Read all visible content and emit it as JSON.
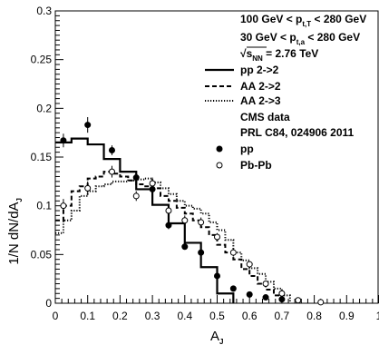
{
  "chart_data": {
    "type": "line",
    "xlabel": "A",
    "xlabel_sub": "J",
    "ylabel": "1/N dN/dA",
    "ylabel_sub": "J",
    "xlim": [
      0,
      1
    ],
    "ylim": [
      0,
      0.3
    ],
    "x_ticks": [
      "0",
      "0.1",
      "0.2",
      "0.3",
      "0.4",
      "0.5",
      "0.6",
      "0.7",
      "0.8",
      "0.9",
      "1"
    ],
    "y_ticks": [
      "0",
      "0.05",
      "0.1",
      "0.15",
      "0.2",
      "0.25",
      "0.3"
    ],
    "annotations": [
      {
        "pre": "100 GeV < p",
        "sub": "t,T",
        "post": " < 280 GeV"
      },
      {
        "pre": "30 GeV < p",
        "sub": "t,a",
        "post": " < 280 GeV"
      },
      {
        "pre": "√s",
        "sub": "NN",
        "post": " = 2.76 TeV"
      }
    ],
    "legend": [
      {
        "label": "pp 2->2",
        "style": "solid"
      },
      {
        "label": "AA 2->2",
        "style": "dashed"
      },
      {
        "label": "AA 2->3",
        "style": "dotted"
      },
      {
        "label": "CMS data",
        "style": "none"
      },
      {
        "label": "PRL C84, 024906 2011",
        "style": "none"
      },
      {
        "label": "pp",
        "style": "filled-circle"
      },
      {
        "label": "Pb-Pb",
        "style": "open-circle"
      }
    ],
    "series": [
      {
        "name": "pp 2->2",
        "kind": "step",
        "style": "solid",
        "edges": [
          0,
          0.05,
          0.1,
          0.15,
          0.2,
          0.25,
          0.3,
          0.35,
          0.4,
          0.45,
          0.5,
          0.55
        ],
        "values": [
          0.165,
          0.169,
          0.163,
          0.148,
          0.135,
          0.117,
          0.101,
          0.082,
          0.062,
          0.037,
          0.01
        ]
      },
      {
        "name": "AA 2->2",
        "kind": "step",
        "style": "dashed",
        "edges": [
          0,
          0.025,
          0.05,
          0.075,
          0.1,
          0.125,
          0.15,
          0.175,
          0.2,
          0.225,
          0.25,
          0.275,
          0.3,
          0.325,
          0.35,
          0.375,
          0.4,
          0.425,
          0.45,
          0.475,
          0.5,
          0.525,
          0.55,
          0.575,
          0.6,
          0.625,
          0.65,
          0.675,
          0.7
        ],
        "values": [
          0.085,
          0.1,
          0.115,
          0.12,
          0.128,
          0.13,
          0.135,
          0.133,
          0.13,
          0.126,
          0.122,
          0.12,
          0.118,
          0.11,
          0.105,
          0.098,
          0.092,
          0.085,
          0.078,
          0.07,
          0.06,
          0.052,
          0.045,
          0.035,
          0.028,
          0.02,
          0.014,
          0.008
        ]
      },
      {
        "name": "AA 2->3",
        "kind": "step",
        "style": "dotted",
        "edges": [
          0,
          0.025,
          0.05,
          0.075,
          0.1,
          0.125,
          0.15,
          0.175,
          0.2,
          0.225,
          0.25,
          0.275,
          0.3,
          0.325,
          0.35,
          0.375,
          0.4,
          0.425,
          0.45,
          0.475,
          0.5,
          0.525,
          0.55,
          0.575,
          0.6,
          0.625,
          0.65,
          0.675,
          0.7,
          0.725
        ],
        "values": [
          0.072,
          0.085,
          0.095,
          0.11,
          0.115,
          0.12,
          0.122,
          0.125,
          0.125,
          0.126,
          0.127,
          0.128,
          0.124,
          0.118,
          0.112,
          0.105,
          0.1,
          0.097,
          0.092,
          0.083,
          0.075,
          0.065,
          0.052,
          0.044,
          0.036,
          0.03,
          0.022,
          0.015,
          0.008
        ]
      },
      {
        "name": "pp",
        "kind": "points",
        "marker": "filled-circle",
        "x": [
          0.025,
          0.1,
          0.175,
          0.25,
          0.3,
          0.35,
          0.4,
          0.45,
          0.5,
          0.55,
          0.6,
          0.65,
          0.7
        ],
        "y": [
          0.167,
          0.183,
          0.157,
          0.129,
          0.117,
          0.08,
          0.058,
          0.052,
          0.028,
          0.015,
          0.009,
          0.006,
          0.004
        ],
        "err": [
          0.007,
          0.008,
          0.005,
          0.005,
          0.005,
          0.004,
          0.003,
          0.004,
          0.003,
          0.002,
          0.002,
          0.001,
          0.001
        ]
      },
      {
        "name": "Pb-Pb",
        "kind": "points",
        "marker": "open-circle",
        "x": [
          0.025,
          0.1,
          0.175,
          0.25,
          0.3,
          0.35,
          0.4,
          0.45,
          0.5,
          0.55,
          0.6,
          0.65,
          0.7,
          0.75,
          0.82
        ],
        "y": [
          0.1,
          0.118,
          0.135,
          0.11,
          0.123,
          0.095,
          0.085,
          0.083,
          0.068,
          0.052,
          0.04,
          0.02,
          0.01,
          0.003,
          0.001
        ],
        "err": [
          0.007,
          0.007,
          0.006,
          0.005,
          0.006,
          0.005,
          0.005,
          0.005,
          0.004,
          0.004,
          0.003,
          0.003,
          0.002,
          0.001,
          0.001
        ]
      }
    ]
  }
}
